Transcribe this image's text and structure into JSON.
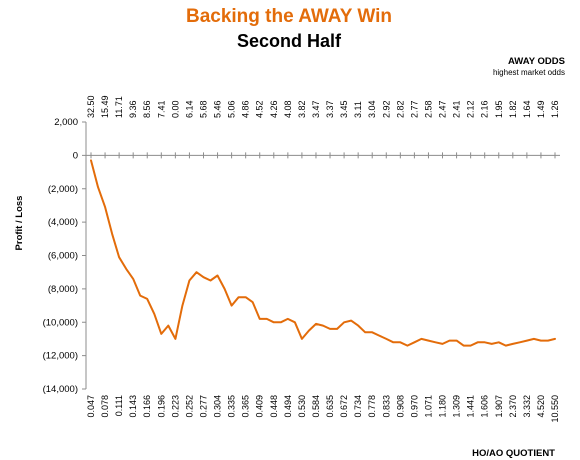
{
  "chart_data": {
    "type": "line",
    "title": "Backing the AWAY Win",
    "subtitle": "Second Half",
    "ylabel": "Profit / Loss",
    "xlabel": "HO/AO QUOTIENT",
    "top_axis_title": "AWAY ODDS",
    "top_axis_subtitle": "highest market odds",
    "ylim": [
      -14000,
      2000
    ],
    "y_ticks": [
      2000,
      0,
      -2000,
      -4000,
      -6000,
      -8000,
      -10000,
      -12000,
      -14000
    ],
    "y_tick_labels": [
      "2,000",
      "0",
      "(2,000)",
      "(4,000)",
      "(6,000)",
      "(8,000)",
      "(10,000)",
      "(12,000)",
      "(14,000)"
    ],
    "x_tick_labels": [
      "0.047",
      "0.078",
      "0.111",
      "0.143",
      "0.166",
      "0.196",
      "0.223",
      "0.252",
      "0.277",
      "0.304",
      "0.335",
      "0.365",
      "0.409",
      "0.448",
      "0.494",
      "0.530",
      "0.584",
      "0.635",
      "0.672",
      "0.734",
      "0.778",
      "0.833",
      "0.908",
      "0.970",
      "1.071",
      "1.180",
      "1.309",
      "1.441",
      "1.606",
      "1.907",
      "2.370",
      "3.332",
      "4.520",
      "10.550"
    ],
    "top_tick_labels": [
      "32.50",
      "15.49",
      "11.71",
      "9.36",
      "8.56",
      "7.41",
      "0.00",
      "6.14",
      "5.68",
      "5.46",
      "5.06",
      "4.86",
      "4.52",
      "4.26",
      "4.08",
      "3.82",
      "3.47",
      "3.37",
      "3.45",
      "3.11",
      "3.04",
      "2.92",
      "2.82",
      "2.77",
      "2.58",
      "2.47",
      "2.41",
      "2.12",
      "2.16",
      "1.95",
      "1.82",
      "1.64",
      "1.49",
      "1.26"
    ],
    "grid": false,
    "series": [
      {
        "color": "#e36c0a",
        "x": [
          0.0,
          0.5,
          1.0,
          1.5,
          2.0,
          2.5,
          3.0,
          3.5,
          4.0,
          4.5,
          5.0,
          5.5,
          6.0,
          6.5,
          7.0,
          7.5,
          8.0,
          8.5,
          9.0,
          9.5,
          10.0,
          10.5,
          11.0,
          11.5,
          12.0,
          12.5,
          13.0,
          13.5,
          14.0,
          14.5,
          15.0,
          15.5,
          16.0,
          16.5,
          17.0,
          17.5,
          18.0,
          18.5,
          19.0,
          19.5,
          20.0,
          20.5,
          21.0,
          21.5,
          22.0,
          22.5,
          23.0,
          23.5,
          24.0,
          24.5,
          25.0,
          25.5,
          26.0,
          26.5,
          27.0,
          27.5,
          28.0,
          28.5,
          29.0,
          29.5,
          30.0,
          30.5,
          31.0,
          31.5,
          32.0,
          32.5,
          33.0
        ],
        "y": [
          -300,
          -1900,
          -3100,
          -4700,
          -6100,
          -6800,
          -7400,
          -8400,
          -8600,
          -9500,
          -10700,
          -10200,
          -11000,
          -9000,
          -7500,
          -7000,
          -7300,
          -7500,
          -7200,
          -8000,
          -9000,
          -8500,
          -8500,
          -8800,
          -9800,
          -9800,
          -10000,
          -10000,
          -9800,
          -10000,
          -11000,
          -10500,
          -10100,
          -10200,
          -10400,
          -10400,
          -10000,
          -9900,
          -10200,
          -10600,
          -10600,
          -10800,
          -11000,
          -11200,
          -11200,
          -11400,
          -11200,
          -11000,
          -11100,
          -11200,
          -11300,
          -11100,
          -11100,
          -11400,
          -11400,
          -11200,
          -11200,
          -11300,
          -11200,
          -11400,
          -11300,
          -11200,
          -11100,
          -11000,
          -11100,
          -11100,
          -11000
        ]
      }
    ]
  }
}
